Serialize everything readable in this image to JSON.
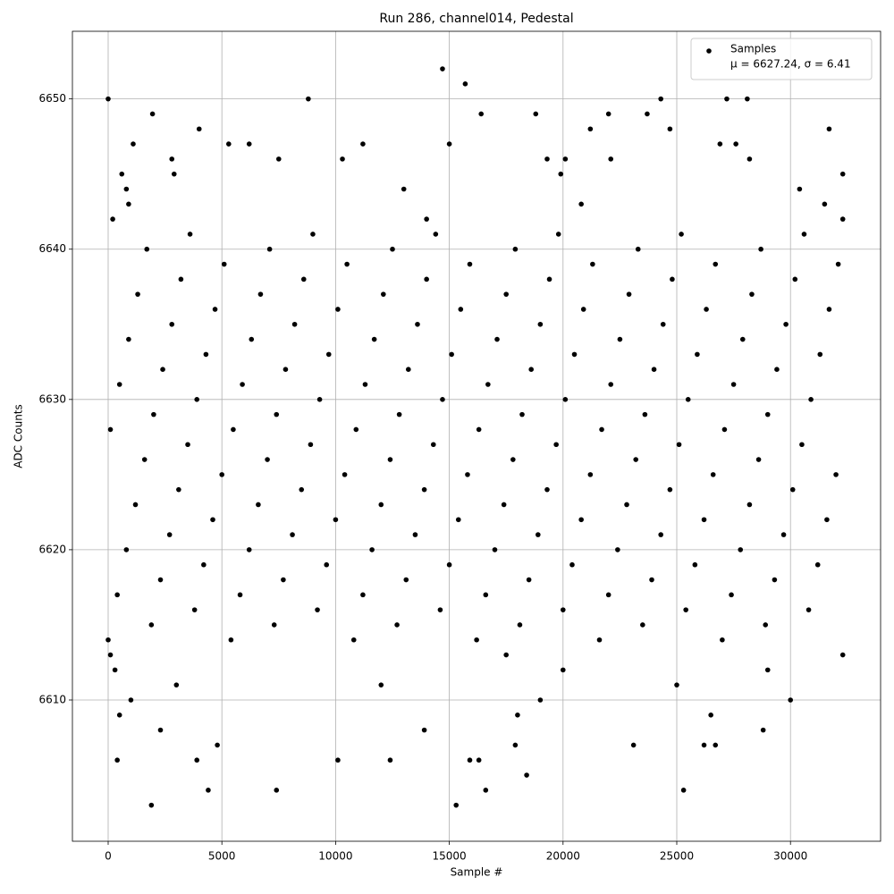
{
  "chart_data": {
    "type": "scatter",
    "title": "Run 286, channel014, Pedestal",
    "x_label": "Sample #",
    "y_label": "ADC Counts",
    "xlim": [
      -1572,
      33962
    ],
    "ylim": [
      6600.6,
      6654.5
    ],
    "xticks": [
      0,
      5000,
      10000,
      15000,
      20000,
      25000,
      30000
    ],
    "yticks": [
      6610,
      6620,
      6630,
      6640,
      6650
    ],
    "grid": true,
    "legend": "upper right",
    "legend_text": "μ = 6627.24, σ = 6.41",
    "x": [
      0,
      1900,
      1950,
      4000,
      4400,
      7400,
      8800,
      10100,
      12400,
      14700,
      15300,
      15700,
      16400,
      16600,
      18400,
      18800,
      21200,
      22000,
      23700,
      24300,
      24700,
      25300,
      27200,
      28100,
      31700,
      400,
      4800,
      23100,
      26200,
      26700,
      17900,
      3900,
      16300,
      15900,
      1100,
      5300,
      6200,
      11200,
      15000,
      26900,
      27600,
      600,
      2800,
      7500,
      10300,
      19300,
      20100,
      22100,
      28200,
      0,
      5400,
      10800,
      16200,
      21600,
      27000,
      1900,
      7300,
      12700,
      18100,
      23500,
      28900,
      3800,
      9200,
      14600,
      20000,
      25400,
      30800,
      400,
      5800,
      11200,
      16600,
      22000,
      27400,
      2300,
      7700,
      13100,
      18500,
      23900,
      29300,
      4200,
      9600,
      15000,
      20400,
      25800,
      31200,
      800,
      6200,
      11600,
      17000,
      22400,
      27800,
      2700,
      8100,
      13500,
      18900,
      24300,
      29700,
      4600,
      10000,
      15400,
      20800,
      26200,
      31600,
      1200,
      6600,
      12000,
      17400,
      22800,
      28200,
      3100,
      8500,
      13900,
      19300,
      24700,
      30100,
      5000,
      10400,
      15800,
      21200,
      26600,
      32000,
      1600,
      7000,
      12400,
      17800,
      23200,
      28600,
      3500,
      8900,
      14300,
      19700,
      25100,
      30500,
      100,
      5500,
      10900,
      16300,
      21700,
      27100,
      2000,
      7400,
      12800,
      18200,
      23600,
      29000,
      3900,
      9300,
      14700,
      20100,
      25500,
      30900,
      500,
      5900,
      11300,
      16700,
      22100,
      27500,
      2400,
      7800,
      13200,
      18600,
      24000,
      29400,
      4300,
      9700,
      15100,
      20500,
      25900,
      31300,
      900,
      6300,
      11700,
      17100,
      22500,
      27900,
      2800,
      8200,
      13600,
      19000,
      24400,
      29800,
      4700,
      10100,
      15500,
      20900,
      26300,
      31700,
      1300,
      6700,
      12100,
      17500,
      22900,
      28300,
      3200,
      8600,
      14000,
      19400,
      24800,
      30200,
      5100,
      10500,
      15900,
      21300,
      26700,
      32100,
      1700,
      7100,
      12500,
      17900,
      23300,
      28700,
      3600,
      9000,
      14400,
      19800,
      25200,
      30600,
      200,
      14000,
      32300,
      100,
      17500,
      32300,
      300,
      20000,
      29000,
      3000,
      12000,
      25000,
      1000,
      19000,
      30000,
      500,
      18000,
      26500,
      2300,
      13900,
      28800,
      900,
      20800,
      31500,
      800,
      13000,
      30400,
      2900,
      19900,
      32300
    ],
    "series": [
      {
        "name": "Samples",
        "color": "#000000",
        "values": [
          6650,
          6603,
          6649,
          6648,
          6604,
          6604,
          6650,
          6606,
          6606,
          6652,
          6603,
          6651,
          6649,
          6604,
          6605,
          6649,
          6648,
          6649,
          6649,
          6650,
          6648,
          6604,
          6650,
          6650,
          6648,
          6606,
          6607,
          6607,
          6607,
          6607,
          6607,
          6606,
          6606,
          6606,
          6647,
          6647,
          6647,
          6647,
          6647,
          6647,
          6647,
          6645,
          6646,
          6646,
          6646,
          6646,
          6646,
          6646,
          6646,
          6614,
          6614,
          6614,
          6614,
          6614,
          6614,
          6615,
          6615,
          6615,
          6615,
          6615,
          6615,
          6616,
          6616,
          6616,
          6616,
          6616,
          6616,
          6617,
          6617,
          6617,
          6617,
          6617,
          6617,
          6618,
          6618,
          6618,
          6618,
          6618,
          6618,
          6619,
          6619,
          6619,
          6619,
          6619,
          6619,
          6620,
          6620,
          6620,
          6620,
          6620,
          6620,
          6621,
          6621,
          6621,
          6621,
          6621,
          6621,
          6622,
          6622,
          6622,
          6622,
          6622,
          6622,
          6623,
          6623,
          6623,
          6623,
          6623,
          6623,
          6624,
          6624,
          6624,
          6624,
          6624,
          6624,
          6625,
          6625,
          6625,
          6625,
          6625,
          6625,
          6626,
          6626,
          6626,
          6626,
          6626,
          6626,
          6627,
          6627,
          6627,
          6627,
          6627,
          6627,
          6628,
          6628,
          6628,
          6628,
          6628,
          6628,
          6629,
          6629,
          6629,
          6629,
          6629,
          6629,
          6630,
          6630,
          6630,
          6630,
          6630,
          6630,
          6631,
          6631,
          6631,
          6631,
          6631,
          6631,
          6632,
          6632,
          6632,
          6632,
          6632,
          6632,
          6633,
          6633,
          6633,
          6633,
          6633,
          6633,
          6634,
          6634,
          6634,
          6634,
          6634,
          6634,
          6635,
          6635,
          6635,
          6635,
          6635,
          6635,
          6636,
          6636,
          6636,
          6636,
          6636,
          6636,
          6637,
          6637,
          6637,
          6637,
          6637,
          6637,
          6638,
          6638,
          6638,
          6638,
          6638,
          6638,
          6639,
          6639,
          6639,
          6639,
          6639,
          6639,
          6640,
          6640,
          6640,
          6640,
          6640,
          6640,
          6641,
          6641,
          6641,
          6641,
          6641,
          6641,
          6642,
          6642,
          6642,
          6613,
          6613,
          6613,
          6612,
          6612,
          6612,
          6611,
          6611,
          6611,
          6610,
          6610,
          6610,
          6609,
          6609,
          6609,
          6608,
          6608,
          6608,
          6643,
          6643,
          6643,
          6644,
          6644,
          6644,
          6645,
          6645,
          6645
        ]
      }
    ]
  }
}
